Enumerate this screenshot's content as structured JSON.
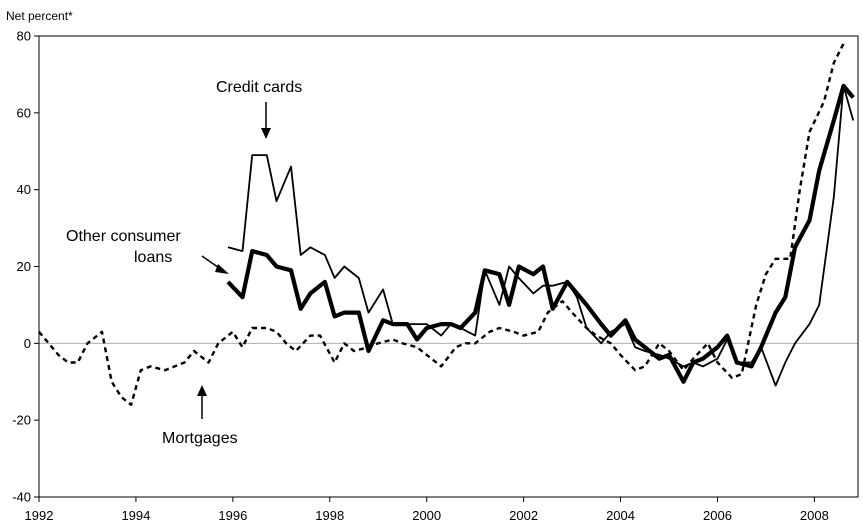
{
  "chart_data": {
    "type": "line",
    "ylabel": "Net percent*",
    "xlim": [
      1992,
      2008.9
    ],
    "ylim": [
      -40,
      80
    ],
    "x_ticks": [
      1992,
      1994,
      1996,
      1998,
      2000,
      2002,
      2004,
      2006,
      2008
    ],
    "y_ticks": [
      -40,
      -20,
      0,
      20,
      40,
      60,
      80
    ],
    "zero_line": true,
    "annotations": [
      {
        "text": "Credit cards"
      },
      {
        "text": "Other consumer loans"
      },
      {
        "text": "Mortgages"
      }
    ],
    "series": [
      {
        "name": "Credit cards",
        "style": "thin",
        "points": [
          [
            1995.9,
            25
          ],
          [
            1996.2,
            24
          ],
          [
            1996.4,
            49
          ],
          [
            1996.7,
            49
          ],
          [
            1996.9,
            37
          ],
          [
            1997.2,
            46
          ],
          [
            1997.4,
            23
          ],
          [
            1997.6,
            25
          ],
          [
            1997.9,
            23
          ],
          [
            1998.1,
            17
          ],
          [
            1998.3,
            20
          ],
          [
            1998.6,
            17
          ],
          [
            1998.8,
            8
          ],
          [
            1999.1,
            14
          ],
          [
            1999.3,
            5
          ],
          [
            1999.6,
            5
          ],
          [
            1999.8,
            5
          ],
          [
            2000.0,
            5
          ],
          [
            2000.3,
            2
          ],
          [
            2000.5,
            5
          ],
          [
            2000.7,
            4
          ],
          [
            2001.0,
            2
          ],
          [
            2001.2,
            19
          ],
          [
            2001.5,
            10
          ],
          [
            2001.7,
            20
          ],
          [
            2001.9,
            17
          ],
          [
            2002.2,
            13
          ],
          [
            2002.4,
            15
          ],
          [
            2002.6,
            15
          ],
          [
            2002.9,
            16
          ],
          [
            2003.1,
            12
          ],
          [
            2003.3,
            4
          ],
          [
            2003.6,
            0
          ],
          [
            2003.8,
            3
          ],
          [
            2004.1,
            5
          ],
          [
            2004.3,
            -1
          ],
          [
            2004.5,
            -2
          ],
          [
            2004.8,
            -3
          ],
          [
            2005.0,
            -4
          ],
          [
            2005.3,
            -6
          ],
          [
            2005.5,
            -5
          ],
          [
            2005.7,
            -6
          ],
          [
            2006.0,
            -4
          ],
          [
            2006.2,
            1
          ],
          [
            2006.4,
            -5
          ],
          [
            2006.7,
            -5
          ],
          [
            2006.9,
            -1
          ],
          [
            2007.2,
            -11
          ],
          [
            2007.4,
            -5
          ],
          [
            2007.6,
            0
          ],
          [
            2007.9,
            5
          ],
          [
            2008.1,
            10
          ],
          [
            2008.4,
            38
          ],
          [
            2008.6,
            67
          ],
          [
            2008.8,
            58
          ]
        ]
      },
      {
        "name": "Other consumer loans",
        "style": "thick",
        "points": [
          [
            1995.9,
            16
          ],
          [
            1996.2,
            12
          ],
          [
            1996.4,
            24
          ],
          [
            1996.7,
            23
          ],
          [
            1996.9,
            20
          ],
          [
            1997.2,
            19
          ],
          [
            1997.4,
            9
          ],
          [
            1997.6,
            13
          ],
          [
            1997.9,
            16
          ],
          [
            1998.1,
            7
          ],
          [
            1998.3,
            8
          ],
          [
            1998.6,
            8
          ],
          [
            1998.8,
            -2
          ],
          [
            1999.1,
            6
          ],
          [
            1999.3,
            5
          ],
          [
            1999.6,
            5
          ],
          [
            1999.8,
            1
          ],
          [
            2000.0,
            4
          ],
          [
            2000.3,
            5
          ],
          [
            2000.5,
            5
          ],
          [
            2000.7,
            4
          ],
          [
            2001.0,
            8
          ],
          [
            2001.2,
            19
          ],
          [
            2001.5,
            18
          ],
          [
            2001.7,
            10
          ],
          [
            2001.9,
            20
          ],
          [
            2002.2,
            18
          ],
          [
            2002.4,
            20
          ],
          [
            2002.6,
            9
          ],
          [
            2002.9,
            16
          ],
          [
            2003.1,
            13
          ],
          [
            2003.3,
            10
          ],
          [
            2003.6,
            5
          ],
          [
            2003.8,
            2
          ],
          [
            2004.1,
            6
          ],
          [
            2004.3,
            1
          ],
          [
            2004.5,
            -1
          ],
          [
            2004.8,
            -4
          ],
          [
            2005.0,
            -3
          ],
          [
            2005.3,
            -10
          ],
          [
            2005.5,
            -5
          ],
          [
            2005.7,
            -4
          ],
          [
            2006.0,
            -1
          ],
          [
            2006.2,
            2
          ],
          [
            2006.4,
            -5
          ],
          [
            2006.7,
            -6
          ],
          [
            2006.9,
            -1
          ],
          [
            2007.2,
            8
          ],
          [
            2007.4,
            12
          ],
          [
            2007.6,
            25
          ],
          [
            2007.9,
            32
          ],
          [
            2008.1,
            45
          ],
          [
            2008.4,
            58
          ],
          [
            2008.6,
            67
          ],
          [
            2008.8,
            64
          ]
        ]
      },
      {
        "name": "Mortgages",
        "style": "dashed",
        "points": [
          [
            1992.0,
            3
          ],
          [
            1992.2,
            0
          ],
          [
            1992.4,
            -3
          ],
          [
            1992.6,
            -5
          ],
          [
            1992.8,
            -5
          ],
          [
            1993.0,
            0
          ],
          [
            1993.3,
            3
          ],
          [
            1993.5,
            -10
          ],
          [
            1993.7,
            -14
          ],
          [
            1993.9,
            -16
          ],
          [
            1994.1,
            -7
          ],
          [
            1994.3,
            -6
          ],
          [
            1994.6,
            -7
          ],
          [
            1994.8,
            -6
          ],
          [
            1995.0,
            -5
          ],
          [
            1995.2,
            -2
          ],
          [
            1995.5,
            -5
          ],
          [
            1995.7,
            0
          ],
          [
            1996.0,
            3
          ],
          [
            1996.2,
            -1
          ],
          [
            1996.4,
            4
          ],
          [
            1996.7,
            4
          ],
          [
            1996.9,
            3
          ],
          [
            1997.1,
            0
          ],
          [
            1997.3,
            -2
          ],
          [
            1997.6,
            2
          ],
          [
            1997.8,
            2
          ],
          [
            1998.1,
            -5
          ],
          [
            1998.3,
            0
          ],
          [
            1998.5,
            -2
          ],
          [
            1998.8,
            -1
          ],
          [
            1999.0,
            0
          ],
          [
            1999.3,
            1
          ],
          [
            1999.5,
            0
          ],
          [
            1999.8,
            -1
          ],
          [
            2000.0,
            -3
          ],
          [
            2000.3,
            -6
          ],
          [
            2000.6,
            -1
          ],
          [
            2000.8,
            0
          ],
          [
            2001.0,
            0
          ],
          [
            2001.3,
            3
          ],
          [
            2001.5,
            4
          ],
          [
            2001.8,
            3
          ],
          [
            2002.0,
            2
          ],
          [
            2002.3,
            3
          ],
          [
            2002.5,
            8
          ],
          [
            2002.8,
            11
          ],
          [
            2003.0,
            8
          ],
          [
            2003.3,
            4
          ],
          [
            2003.5,
            2
          ],
          [
            2003.8,
            0
          ],
          [
            2004.0,
            -3
          ],
          [
            2004.3,
            -7
          ],
          [
            2004.5,
            -6
          ],
          [
            2004.8,
            0
          ],
          [
            2005.0,
            -2
          ],
          [
            2005.3,
            -7
          ],
          [
            2005.5,
            -4
          ],
          [
            2005.8,
            0
          ],
          [
            2006.0,
            -5
          ],
          [
            2006.3,
            -9
          ],
          [
            2006.5,
            -8
          ],
          [
            2006.8,
            10
          ],
          [
            2007.0,
            18
          ],
          [
            2007.2,
            22
          ],
          [
            2007.5,
            22
          ],
          [
            2007.7,
            40
          ],
          [
            2007.9,
            55
          ],
          [
            2008.2,
            63
          ],
          [
            2008.4,
            73
          ],
          [
            2008.6,
            78
          ]
        ]
      }
    ]
  }
}
